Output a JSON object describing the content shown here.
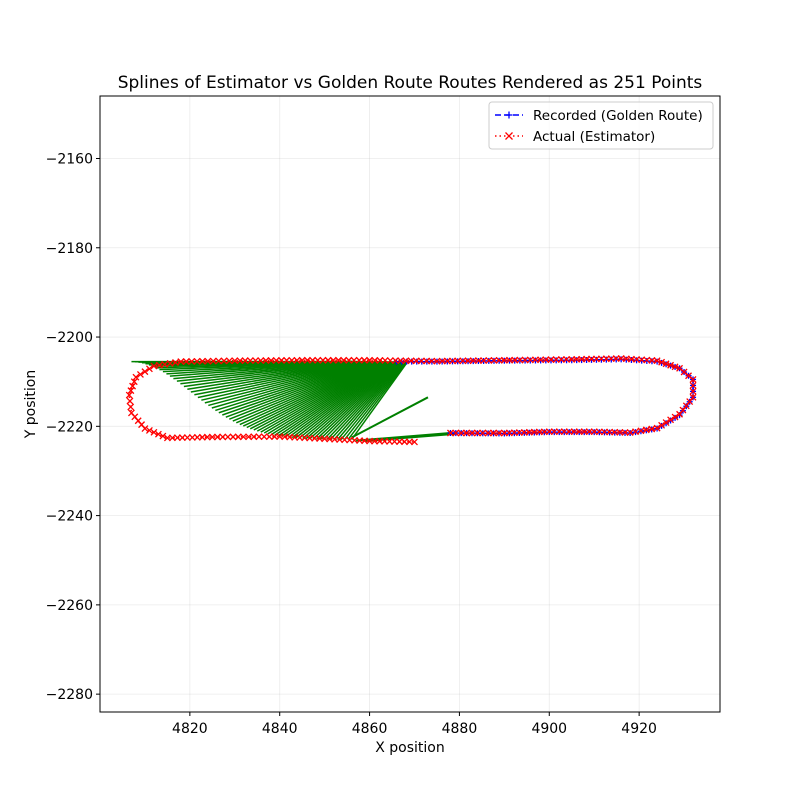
{
  "chart_data": {
    "type": "line",
    "title": "Splines of Estimator vs Golden Route Routes Rendered as 251 Points",
    "xlabel": "X position",
    "ylabel": "Y position",
    "xlim": [
      4800,
      4938
    ],
    "ylim": [
      -2284,
      -2146
    ],
    "xticks": [
      4820,
      4840,
      4860,
      4880,
      4900,
      4920
    ],
    "yticks": [
      -2160,
      -2180,
      -2200,
      -2220,
      -2240,
      -2260,
      -2280
    ],
    "grid": true,
    "legend_position": "upper right",
    "series": [
      {
        "name": "Recorded (Golden Route)",
        "style": "dashed",
        "marker": "+",
        "color": "#0000ff",
        "x": [
          4878,
          4890,
          4900,
          4910,
          4918,
          4924,
          4929,
          4932,
          4932,
          4929,
          4924,
          4916,
          4905,
          4890,
          4875,
          4866
        ],
        "y": [
          -2221.5,
          -2221.6,
          -2221.3,
          -2221.3,
          -2221.5,
          -2220.5,
          -2217.5,
          -2213.5,
          -2209.5,
          -2207,
          -2205.5,
          -2205,
          -2205.2,
          -2205.3,
          -2205.5,
          -2205.5
        ]
      },
      {
        "name": "Actual (Estimator)",
        "style": "dotted",
        "marker": "x",
        "color": "#ff0000",
        "x": [
          4878,
          4890,
          4900,
          4910,
          4918,
          4924,
          4929,
          4932,
          4932,
          4929,
          4924,
          4916,
          4905,
          4890,
          4875,
          4860,
          4845,
          4830,
          4818,
          4812,
          4808,
          4806.5,
          4807,
          4810,
          4815,
          4825,
          4840,
          4850,
          4860,
          4870
        ],
        "y": [
          -2221.5,
          -2221.5,
          -2221.2,
          -2221.2,
          -2221.4,
          -2220.4,
          -2217.3,
          -2213.5,
          -2209.5,
          -2207,
          -2205.3,
          -2204.8,
          -2205,
          -2205.2,
          -2205.4,
          -2205.2,
          -2205.2,
          -2205.3,
          -2205.5,
          -2206.5,
          -2209,
          -2213,
          -2217,
          -2220.5,
          -2222.6,
          -2222.4,
          -2222.3,
          -2222.8,
          -2223.3,
          -2223.5
        ]
      }
    ],
    "error_segments": {
      "color": "#008000",
      "fan_count": 64,
      "actual_from": {
        "x": [
          4807,
          4856
        ],
        "y_top": -2205.5,
        "y_bottom": -2223
      },
      "recorded_to": {
        "x": [
          4856,
          4868.5
        ],
        "y": -2205.5
      },
      "extra": [
        {
          "x1": 4856,
          "y1": -2222.5,
          "x2": 4873,
          "y2": -2213.5
        },
        {
          "x1": 4857,
          "y1": -2223.2,
          "x2": 4878,
          "y2": -2221.5
        },
        {
          "x1": 4859,
          "y1": -2223.3,
          "x2": 4879,
          "y2": -2221.7
        }
      ]
    }
  }
}
